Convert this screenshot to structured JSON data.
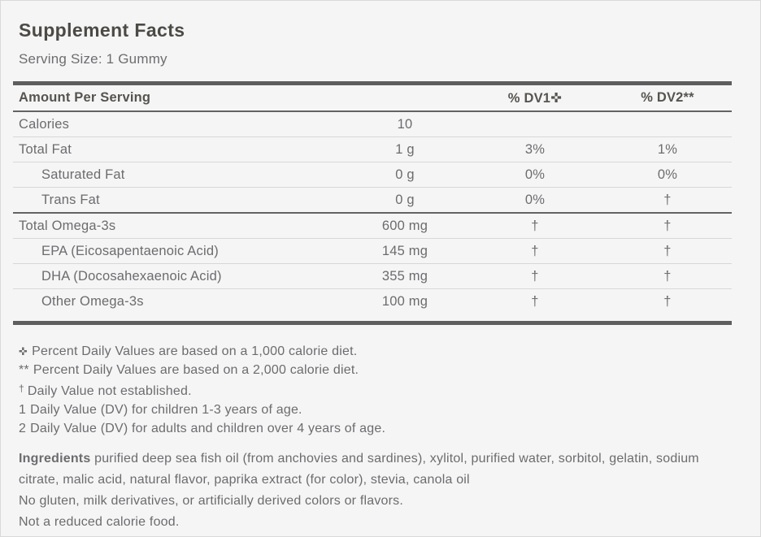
{
  "panel": {
    "title": "Supplement Facts",
    "serving_size": "Serving Size: 1 Gummy"
  },
  "table": {
    "header": {
      "amount_label": "Amount Per Serving",
      "dv1_label": "% DV1✜",
      "dv2_label": "% DV2**"
    },
    "rows": [
      {
        "name": "Calories",
        "amount": "10",
        "dv1": "",
        "dv2": "",
        "indent": "",
        "rule": "thin"
      },
      {
        "name": "Total Fat",
        "amount": "1 g",
        "dv1": "3%",
        "dv2": "1%",
        "indent": "",
        "rule": "thin"
      },
      {
        "name": "Saturated Fat",
        "amount": "0 g",
        "dv1": "0%",
        "dv2": "0%",
        "indent": "indent",
        "rule": "thin"
      },
      {
        "name": "Trans Fat",
        "amount": "0 g",
        "dv1": "0%",
        "dv2": "†",
        "indent": "indent",
        "rule": "dark"
      },
      {
        "name": "Total Omega-3s",
        "amount": "600 mg",
        "dv1": "†",
        "dv2": "†",
        "indent": "",
        "rule": "thin"
      },
      {
        "name": "EPA (Eicosapentaenoic Acid)",
        "amount": "145 mg",
        "dv1": "†",
        "dv2": "†",
        "indent": "indent",
        "rule": "thin"
      },
      {
        "name": "DHA (Docosahexaenoic Acid)",
        "amount": "355 mg",
        "dv1": "†",
        "dv2": "†",
        "indent": "indent",
        "rule": "thin"
      },
      {
        "name": "Other Omega-3s",
        "amount": "100 mg",
        "dv1": "†",
        "dv2": "†",
        "indent": "indent",
        "rule": "none"
      }
    ]
  },
  "footnotes": [
    {
      "marker": "✜",
      "style": "cross",
      "text": "Percent Daily Values are based on a 1,000 calorie diet."
    },
    {
      "marker": "**",
      "style": "",
      "text": "Percent Daily Values are based on a 2,000 calorie diet."
    },
    {
      "marker": "†",
      "style": "sup",
      "text": "Daily Value not established."
    },
    {
      "marker": "1",
      "style": "",
      "text": "Daily Value (DV) for children 1-3 years of age."
    },
    {
      "marker": "2",
      "style": "",
      "text": "Daily Value (DV) for adults and children over 4 years of age."
    }
  ],
  "ingredients": {
    "label": "Ingredients",
    "text": "purified deep sea fish oil (from anchovies and sardines), xylitol, purified water, sorbitol, gelatin, sodium citrate, malic acid, natural flavor, paprika extract (for color), stevia, canola oil"
  },
  "notes": [
    "No gluten, milk derivatives, or artificially derived colors or flavors.",
    "Not a reduced calorie food."
  ],
  "colors": {
    "background": "#f5f5f6",
    "heading_text": "#4c4a45",
    "body_text": "#6c6c6e",
    "rule_dark": "#5e5e5e",
    "rule_light": "#d7d7d7"
  }
}
